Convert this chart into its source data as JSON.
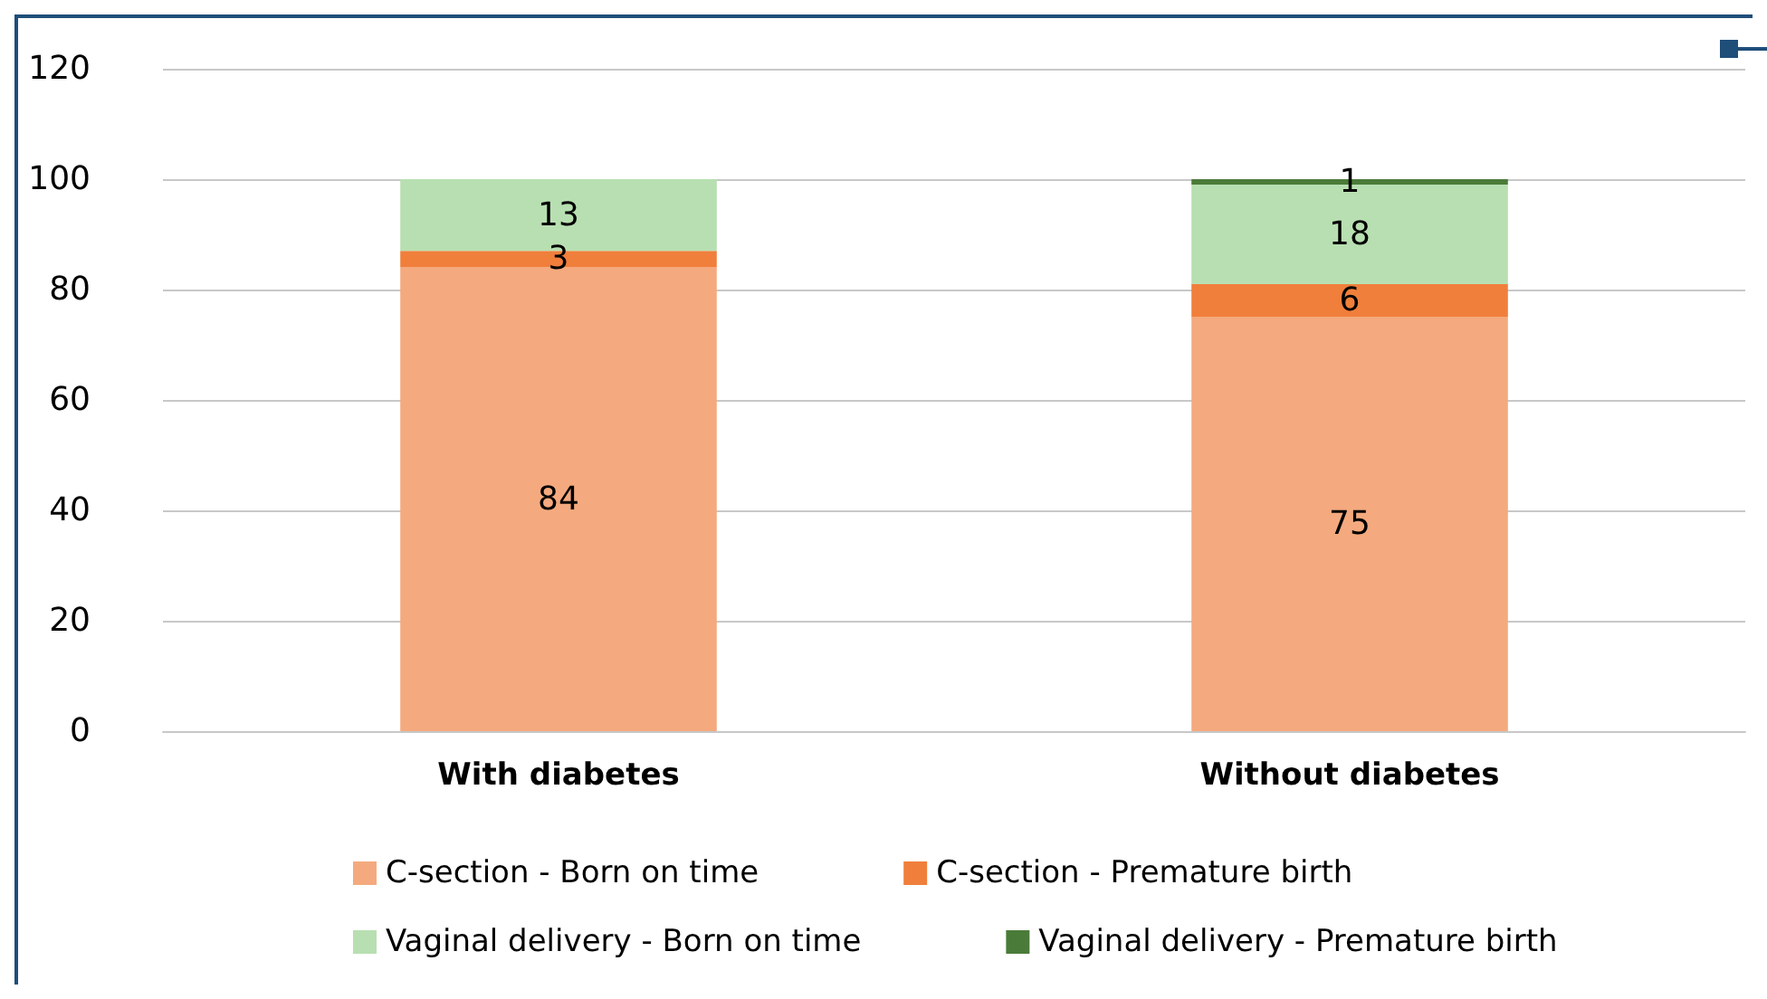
{
  "chart_data": {
    "type": "bar",
    "stacked": true,
    "categories": [
      "With diabetes",
      "Without diabetes"
    ],
    "series": [
      {
        "name": "C-section - Born on time",
        "color": "#f4aa7e",
        "values": [
          84,
          75
        ]
      },
      {
        "name": "C-section - Premature birth",
        "color": "#f07f3b",
        "values": [
          3,
          6
        ]
      },
      {
        "name": "Vaginal delivery - Born on time",
        "color": "#b8dfb1",
        "values": [
          13,
          18
        ]
      },
      {
        "name": "Vaginal delivery - Premature birth",
        "color": "#4b7b39",
        "values": [
          null,
          1
        ]
      }
    ],
    "ylim": [
      0,
      120
    ],
    "yticks": [
      0,
      20,
      40,
      60,
      80,
      100,
      120
    ],
    "grid": "y",
    "legend": "bottom",
    "data_labels": true
  }
}
